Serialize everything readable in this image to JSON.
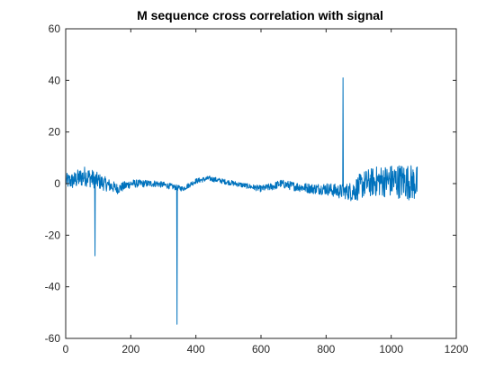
{
  "chart_data": {
    "type": "line",
    "title": "M sequence cross correlation with signal",
    "xlabel": "",
    "ylabel": "",
    "xlim": [
      0,
      1200
    ],
    "ylim": [
      -60,
      60
    ],
    "xticks": [
      0,
      200,
      400,
      600,
      800,
      1000,
      1200
    ],
    "yticks": [
      -60,
      -40,
      -20,
      0,
      20,
      40,
      60
    ],
    "grid": false,
    "colors": {
      "line": "#0072BD",
      "axes": "#262626",
      "background": "#ffffff"
    },
    "series": [
      {
        "x_start": 1,
        "x_end": 1080,
        "baseline": [
          [
            1,
            1
          ],
          [
            20,
            1
          ],
          [
            40,
            2
          ],
          [
            60,
            3
          ],
          [
            80,
            2
          ],
          [
            100,
            1
          ],
          [
            120,
            0
          ],
          [
            140,
            -1
          ],
          [
            160,
            -2
          ],
          [
            180,
            -1
          ],
          [
            200,
            0
          ],
          [
            240,
            0
          ],
          [
            280,
            0
          ],
          [
            320,
            -1
          ],
          [
            360,
            -2
          ],
          [
            400,
            1
          ],
          [
            440,
            2
          ],
          [
            480,
            1
          ],
          [
            520,
            0
          ],
          [
            560,
            -1
          ],
          [
            600,
            -2
          ],
          [
            640,
            -1
          ],
          [
            660,
            0
          ],
          [
            700,
            -1
          ],
          [
            760,
            -2
          ],
          [
            800,
            -2
          ],
          [
            840,
            -3
          ],
          [
            880,
            -3
          ],
          [
            920,
            0
          ],
          [
            960,
            1
          ],
          [
            1000,
            1
          ],
          [
            1040,
            1
          ],
          [
            1080,
            0
          ]
        ],
        "noise_amplitude": [
          [
            1,
            3
          ],
          [
            60,
            4
          ],
          [
            110,
            3
          ],
          [
            160,
            2
          ],
          [
            220,
            1.5
          ],
          [
            360,
            1
          ],
          [
            560,
            1
          ],
          [
            640,
            1.5
          ],
          [
            760,
            2
          ],
          [
            860,
            3
          ],
          [
            900,
            5
          ],
          [
            960,
            6
          ],
          [
            1040,
            7
          ],
          [
            1080,
            7
          ]
        ],
        "spikes": [
          {
            "x": 90,
            "y": -28
          },
          {
            "x": 342,
            "y": -54.5
          },
          {
            "x": 852,
            "y": 41
          }
        ]
      }
    ]
  }
}
